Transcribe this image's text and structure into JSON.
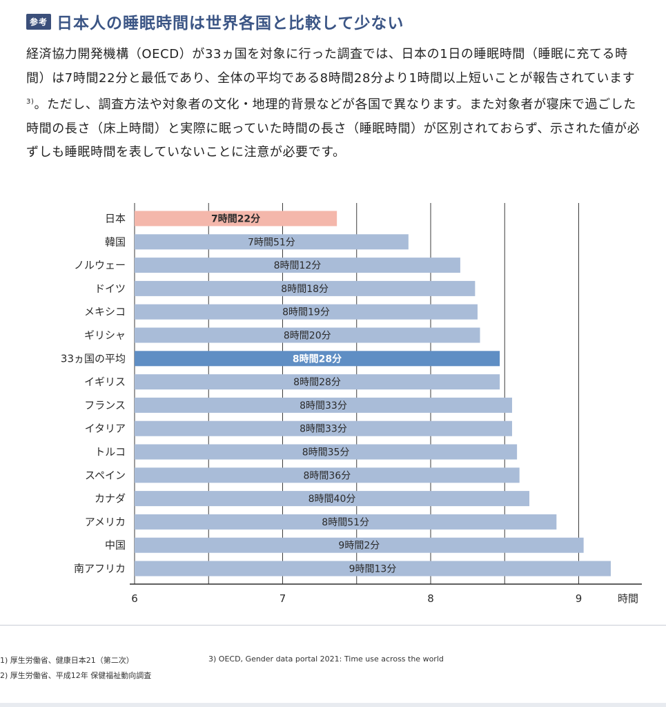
{
  "header": {
    "badge": "参考",
    "title": "日本人の睡眠時間は世界各国と比較して少ない"
  },
  "body": {
    "text_before_ref": "経済協力開発機構（OECD）が33ヵ国を対象に行った調査では、日本の1日の睡眠時間（睡眠に充てる時間）は7時間22分と最低であり、全体の平均である8時間28分より1時間以上短いことが報告されています",
    "ref": "3)",
    "text_after_ref": "。ただし、調査方法や対象者の文化・地理的背景などが各国で異なります。また対象者が寝床で過ごした時間の長さ（床上時間）と実際に眠っていた時間の長さ（睡眠時間）が区別されておらず、示された値が必ずしも睡眠時間を表していないことに注意が必要です。"
  },
  "chart_data": {
    "type": "bar",
    "orientation": "horizontal",
    "categories": [
      "日本",
      "韓国",
      "ノルウェー",
      "ドイツ",
      "メキシコ",
      "ギリシャ",
      "33ヵ国の平均",
      "イギリス",
      "フランス",
      "イタリア",
      "トルコ",
      "スペイン",
      "カナダ",
      "アメリカ",
      "中国",
      "南アフリカ"
    ],
    "values": [
      7.3667,
      7.85,
      8.2,
      8.3,
      8.3167,
      8.3333,
      8.4667,
      8.4667,
      8.55,
      8.55,
      8.5833,
      8.6,
      8.6667,
      8.85,
      9.0333,
      9.2167
    ],
    "data_labels": [
      "7時間22分",
      "7時間51分",
      "8時間12分",
      "8時間18分",
      "8時間19分",
      "8時間20分",
      "8時間28分",
      "8時間28分",
      "8時間33分",
      "8時間33分",
      "8時間35分",
      "8時間36分",
      "8時間40分",
      "8時間51分",
      "9時間2分",
      "9時間13分"
    ],
    "highlight": {
      "日本": "#f4b7ab",
      "33ヵ国の平均": "#5f8ec4"
    },
    "bar_color": "#a9bcd8",
    "xticks": [
      6,
      7,
      8,
      9
    ],
    "xlim": [
      6,
      9.25
    ],
    "xlabel": "時間",
    "grid": true
  },
  "footnotes": {
    "fn1": "1) 厚生労働省、健康日本21（第二次）",
    "fn2": "2) 厚生労働省、平成12年 保健福祉動向調査",
    "fn3": "3) OECD, Gender data portal 2021: Time use across the world"
  }
}
